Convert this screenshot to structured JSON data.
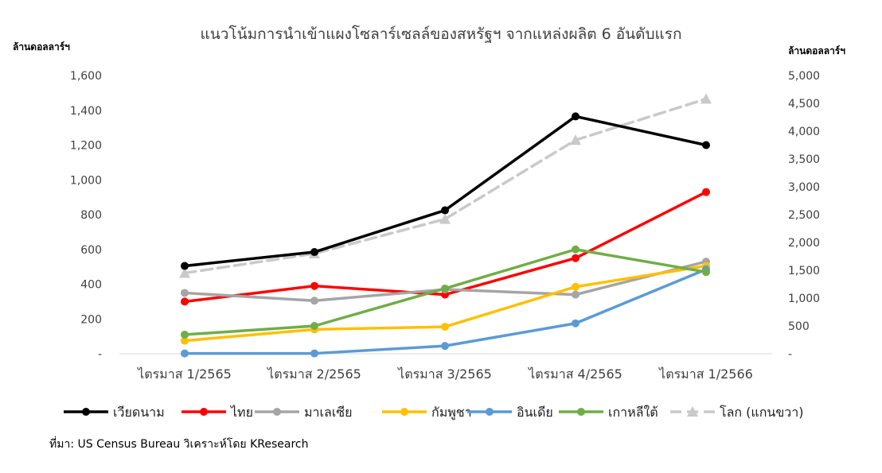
{
  "chart_data": {
    "type": "line",
    "title": "แนวโน้มการนำเข้าแผงโซลาร์เซลล์ของสหรัฐฯ จากแหล่งผลิต 6 อันดับแรก",
    "ylabel_left": "ล้านดอลลาร์ฯ",
    "ylabel_right": "ล้านดอลลาร์ฯ",
    "source": "ที่มา: US Census Bureau วิเคราะห์โดย KResearch",
    "categories": [
      "ไตรมาส 1/2565",
      "ไตรมาส 2/2565",
      "ไตรมาส 3/2565",
      "ไตรมาส 4/2565",
      "ไตรมาส 1/2566"
    ],
    "ylim_left": [
      0,
      1600
    ],
    "yticks_left": [
      "-",
      "200",
      "400",
      "600",
      "800",
      "1,000",
      "1,200",
      "1,400",
      "1,600"
    ],
    "ylim_right": [
      0,
      5000
    ],
    "yticks_right": [
      "-",
      "500",
      "1,000",
      "1,500",
      "2,000",
      "2,500",
      "3,000",
      "3,500",
      "4,000",
      "4,500",
      "5,000"
    ],
    "grid": false,
    "legend_position": "bottom",
    "series": [
      {
        "name": "เวียดนาม",
        "axis": "left",
        "color": "#000000",
        "dash": "solid",
        "marker": "circle",
        "values": [
          505,
          585,
          825,
          1365,
          1200
        ]
      },
      {
        "name": "ไทย",
        "axis": "left",
        "color": "#ff0000",
        "dash": "solid",
        "marker": "circle",
        "values": [
          300,
          390,
          340,
          550,
          930
        ]
      },
      {
        "name": "มาเลเซีย",
        "axis": "left",
        "color": "#a5a5a5",
        "dash": "solid",
        "marker": "circle",
        "values": [
          350,
          305,
          370,
          340,
          530
        ]
      },
      {
        "name": "กัมพูชา",
        "axis": "left",
        "color": "#ffc000",
        "dash": "solid",
        "marker": "circle",
        "values": [
          75,
          140,
          155,
          385,
          505
        ]
      },
      {
        "name": "อินเดีย",
        "axis": "left",
        "color": "#5b9bd5",
        "dash": "solid",
        "marker": "circle",
        "values": [
          2,
          2,
          45,
          175,
          485
        ]
      },
      {
        "name": "เกาหลีใต้",
        "axis": "left",
        "color": "#70ad47",
        "dash": "solid",
        "marker": "circle",
        "values": [
          110,
          160,
          375,
          600,
          470
        ]
      },
      {
        "name": "โลก (แกนขวา)",
        "axis": "right",
        "color": "#c9c9c9",
        "dash": "dashed",
        "marker": "triangle",
        "values": [
          1450,
          1800,
          2420,
          3840,
          4580
        ]
      }
    ]
  }
}
